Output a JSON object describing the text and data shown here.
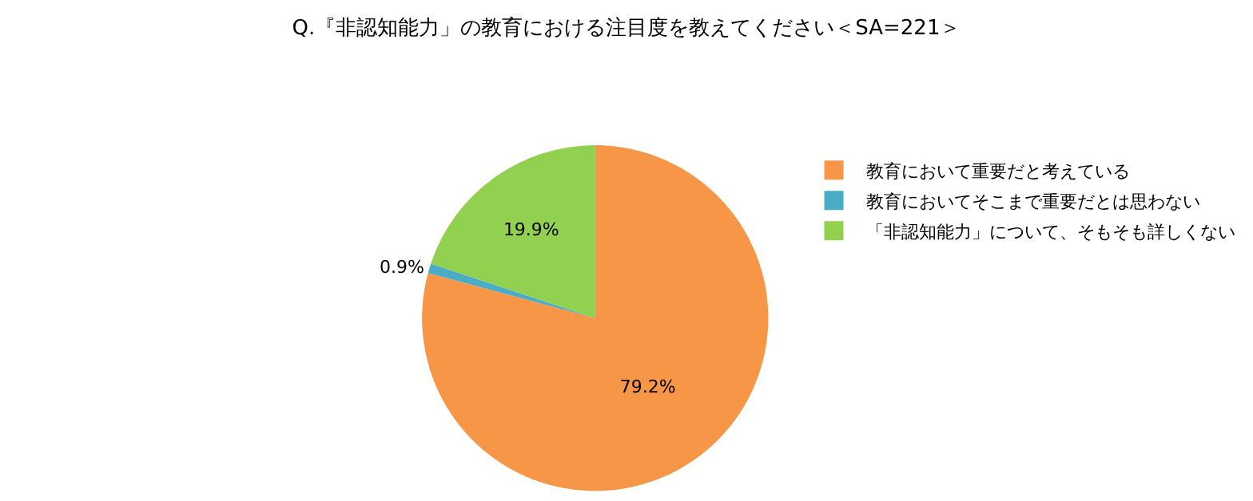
{
  "chart_data": {
    "type": "pie",
    "title": "Q.『非認知能力」の教育における注目度を教えてください＜SA=221＞",
    "categories": [
      "教育において重要だと考えている",
      "教育においてそこまで重要だとは思わない",
      "「非認知能力」について、そもそも詳しくない"
    ],
    "values": [
      79.2,
      0.9,
      19.9
    ],
    "colors": [
      "#f79646",
      "#4bacc6",
      "#92d050"
    ],
    "value_labels": [
      "79.2%",
      "0.9%",
      "19.9%"
    ],
    "legend": "right"
  }
}
